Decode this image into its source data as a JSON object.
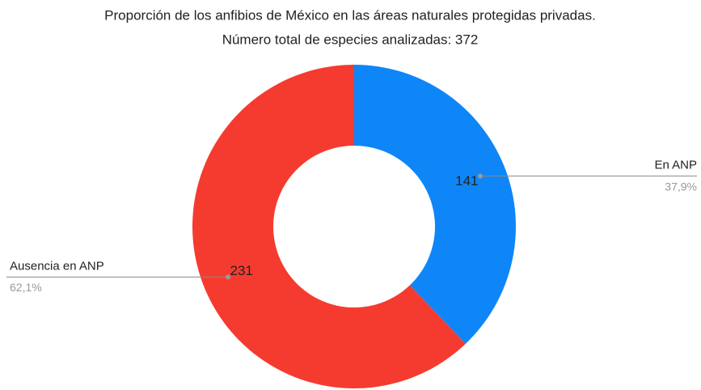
{
  "chart_data": {
    "type": "donut",
    "title": "Proporción de los anfibios de México en las áreas naturales protegidas privadas.",
    "subtitle": "Número total de especies analizadas: 372",
    "categories": [
      "En ANP",
      "Ausencia en ANP"
    ],
    "values": [
      141,
      231
    ],
    "colors": [
      "#0f86f7",
      "#f53b2f"
    ],
    "percentages": [
      37.9,
      62.1
    ],
    "percentage_labels": [
      "37,9%",
      "62,1%"
    ]
  }
}
